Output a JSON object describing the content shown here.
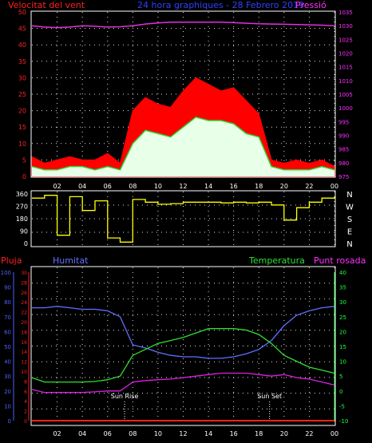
{
  "header": {
    "wind_title": "Velocitat del vent",
    "subtitle": "24 hora graphiques - 28 Febrero 2019",
    "pressure_title": "Pressió"
  },
  "lower_labels": {
    "rain": "Pluja",
    "humidity": "Humitat",
    "temperature": "Temperatura",
    "dewpoint": "Punt rosada",
    "sunrise": "Sun Rise",
    "sunset": "Sun Set"
  },
  "colors": {
    "background": "#000000",
    "grid": "#e0e0e0",
    "axis_red": "#ff2020",
    "axis_magenta": "#ff30ff",
    "axis_blue": "#5060ff",
    "axis_green": "#20ff40",
    "axis_white": "#ffffff",
    "gust": "#ff0000",
    "avg_wind": "#30d030",
    "wind_fill": "#e8ffe8",
    "pressure": "#e030e0",
    "direction": "#ffff00",
    "humidity": "#6070ff",
    "temperature": "#30e030",
    "dewpoint": "#e020e0",
    "rain": "#ff2020",
    "sun_marker": "#ffffff"
  },
  "chart_data": [
    {
      "type": "line",
      "name": "wind",
      "title": "Velocitat del vent",
      "x_ticks": [
        "02",
        "04",
        "06",
        "08",
        "10",
        "12",
        "14",
        "16",
        "18",
        "20",
        "22",
        "00"
      ],
      "ylim": [
        0,
        50
      ],
      "y_ticks": [
        0,
        5,
        10,
        15,
        20,
        25,
        30,
        35,
        40,
        45,
        50
      ],
      "y2lim": [
        975,
        1035
      ],
      "y2_ticks": [
        975,
        980,
        985,
        990,
        995,
        1000,
        1005,
        1010,
        1015,
        1020,
        1025,
        1030,
        1035
      ],
      "x_hours": [
        0,
        1,
        2,
        3,
        4,
        5,
        6,
        7,
        8,
        9,
        10,
        11,
        12,
        13,
        14,
        15,
        16,
        17,
        18,
        19,
        20,
        21,
        22,
        23,
        24
      ],
      "series": [
        {
          "name": "gust",
          "values": [
            6,
            4,
            5,
            6,
            5,
            5,
            7,
            4,
            20,
            24,
            22,
            21,
            26,
            30,
            28,
            26,
            27,
            23,
            19,
            5,
            4,
            5,
            4,
            5,
            3
          ]
        },
        {
          "name": "average",
          "values": [
            3,
            2,
            2,
            3,
            3,
            2,
            3,
            2,
            10,
            14,
            13,
            12,
            15,
            18,
            17,
            17,
            16,
            13,
            12,
            3,
            2,
            2,
            2,
            3,
            2
          ]
        },
        {
          "name": "Pressió",
          "values": [
            1030,
            1029.5,
            1029.3,
            1029.5,
            1030,
            1029.8,
            1029.5,
            1029.6,
            1030,
            1030.6,
            1031,
            1031.3,
            1031.3,
            1031.3,
            1031.3,
            1031.3,
            1031.1,
            1030.9,
            1030.7,
            1030.6,
            1030.5,
            1030.4,
            1030.3,
            1030.2,
            1030
          ]
        }
      ]
    },
    {
      "type": "line",
      "name": "direction",
      "x_ticks": [
        "02",
        "04",
        "06",
        "08",
        "10",
        "12",
        "14",
        "16",
        "18",
        "20",
        "22",
        "00"
      ],
      "ylim": [
        0,
        360
      ],
      "y_ticks": [
        0,
        90,
        180,
        270,
        360
      ],
      "y2_labels": [
        "N",
        "W",
        "S",
        "E",
        "N"
      ],
      "x_hours": [
        0,
        1,
        2,
        3,
        4,
        5,
        6,
        7,
        8,
        9,
        10,
        11,
        12,
        13,
        14,
        15,
        16,
        17,
        18,
        19,
        20,
        21,
        22,
        23,
        24
      ],
      "values": [
        330,
        350,
        60,
        340,
        240,
        310,
        40,
        10,
        320,
        300,
        285,
        290,
        300,
        300,
        300,
        295,
        300,
        295,
        300,
        280,
        170,
        260,
        300,
        330,
        340
      ]
    },
    {
      "type": "line",
      "name": "temperature-humidity",
      "x_ticks": [
        "02",
        "04",
        "06",
        "08",
        "10",
        "12",
        "14",
        "16",
        "18",
        "20",
        "22",
        "00"
      ],
      "y_left_outer": {
        "label": "Humitat",
        "ylim": [
          0,
          100
        ],
        "ticks": [
          0,
          10,
          20,
          30,
          40,
          50,
          60,
          70,
          80,
          90,
          100
        ]
      },
      "y_left_inner": {
        "label": "Pluja",
        "ylim": [
          0,
          30
        ],
        "ticks": [
          0,
          2,
          4,
          6,
          8,
          10,
          12,
          14,
          16,
          18,
          20,
          22,
          24,
          26,
          28,
          30
        ]
      },
      "y_right": {
        "label": "Temperatura",
        "ylim": [
          -10,
          40
        ],
        "ticks": [
          -10,
          -5,
          0,
          5,
          10,
          15,
          20,
          25,
          30,
          35,
          40
        ]
      },
      "x_hours": [
        0,
        1,
        2,
        3,
        4,
        5,
        6,
        7,
        8,
        9,
        10,
        11,
        12,
        13,
        14,
        15,
        16,
        17,
        18,
        19,
        20,
        21,
        22,
        23,
        24
      ],
      "series": [
        {
          "name": "Humitat",
          "values": [
            76,
            76,
            77,
            76,
            75,
            75,
            74,
            70,
            51,
            49,
            46,
            44,
            43,
            43,
            42,
            42,
            43,
            45,
            48,
            54,
            64,
            71,
            74,
            76,
            77
          ]
        },
        {
          "name": "Temperatura",
          "values": [
            4.5,
            3,
            3,
            3,
            3,
            3.2,
            3.8,
            5,
            12,
            14,
            16,
            17,
            18,
            19.5,
            21,
            21,
            21,
            20.5,
            19,
            16,
            12,
            10,
            8,
            7,
            6
          ]
        },
        {
          "name": "Punt rosada",
          "values": [
            0.5,
            -0.5,
            -0.5,
            -0.5,
            -0.5,
            -0.3,
            0,
            0,
            3,
            3.5,
            3.8,
            4,
            4.5,
            5,
            5.5,
            6,
            6,
            6,
            5.5,
            5,
            5.5,
            4.5,
            4,
            3,
            2
          ]
        },
        {
          "name": "Pluja",
          "values": [
            0,
            0,
            0,
            0,
            0,
            0,
            0,
            0,
            0,
            0,
            0,
            0,
            0,
            0,
            0,
            0,
            0,
            0,
            0,
            0,
            0,
            0,
            0,
            0,
            0
          ]
        }
      ],
      "sunrise_hour": 7.35,
      "sunset_hour": 18.85
    }
  ]
}
